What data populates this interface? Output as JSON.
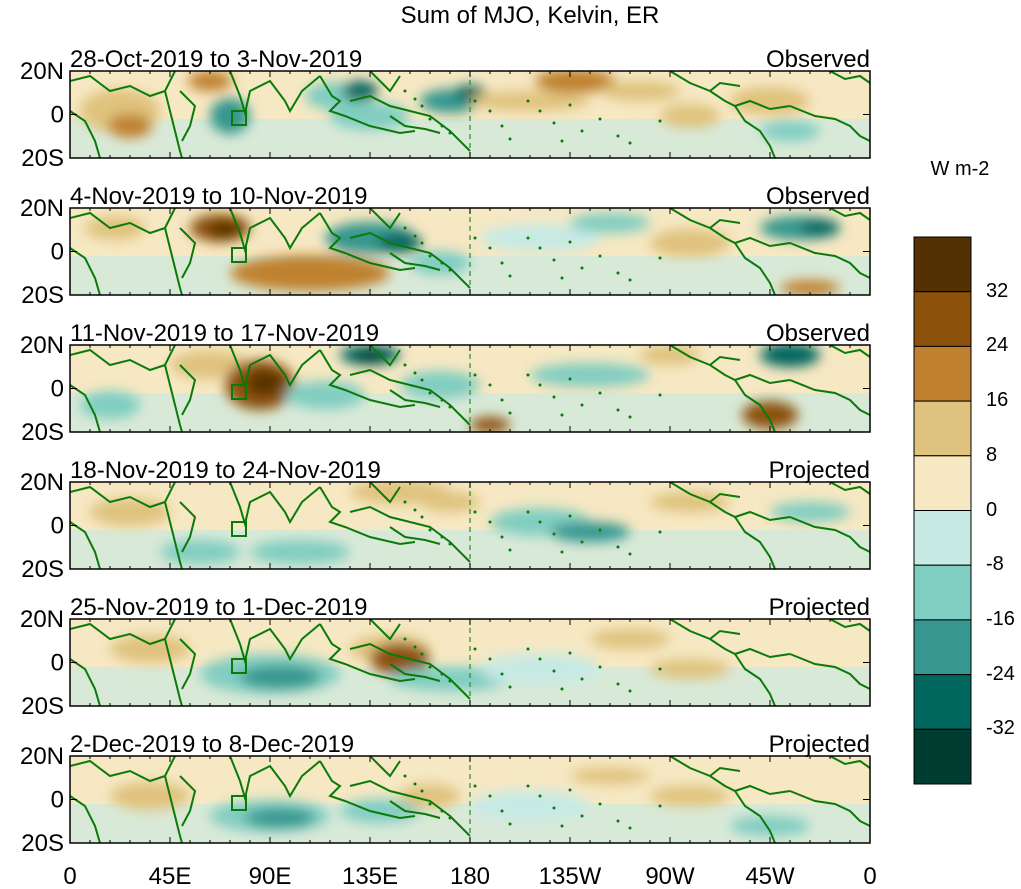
{
  "title": "Sum of MJO, Kelvin, ER",
  "panels": [
    {
      "date": "28-Oct-2019 to 3-Nov-2019",
      "status": "Observed"
    },
    {
      "date": "4-Nov-2019 to 10-Nov-2019",
      "status": "Observed"
    },
    {
      "date": "11-Nov-2019 to 17-Nov-2019",
      "status": "Observed"
    },
    {
      "date": "18-Nov-2019 to 24-Nov-2019",
      "status": "Projected"
    },
    {
      "date": "25-Nov-2019 to 1-Dec-2019",
      "status": "Projected"
    },
    {
      "date": "2-Dec-2019 to 8-Dec-2019",
      "status": "Projected"
    }
  ],
  "lat_labels": [
    "20N",
    "0",
    "20S"
  ],
  "lon_labels": [
    "0",
    "45E",
    "90E",
    "135E",
    "180",
    "135W",
    "90W",
    "45W",
    "0"
  ],
  "colorbar": {
    "units": "W m-2",
    "ticks": [
      "32",
      "24",
      "16",
      "8",
      "0",
      "-8",
      "-16",
      "-24",
      "-32"
    ],
    "colors": [
      "#543005",
      "#8c510a",
      "#bf812d",
      "#dfc27d",
      "#f6e8c3",
      "#c7eae5",
      "#80cdc1",
      "#35978f",
      "#01665e",
      "#003c30"
    ]
  },
  "colors": {
    "coast": "#0a7a0a",
    "dashline": "#2a8a2a"
  }
}
